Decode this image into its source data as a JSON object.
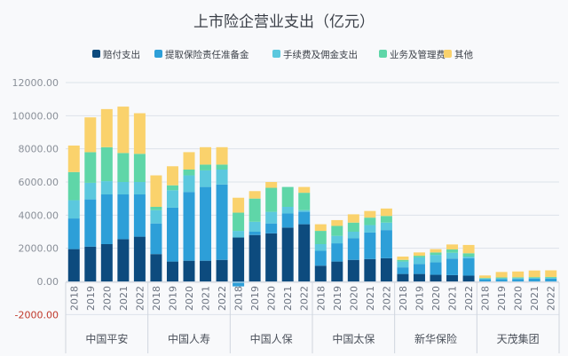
{
  "chart_data": {
    "type": "bar",
    "stacked": true,
    "title": "上市险企营业支出（亿元）",
    "xlabel": "",
    "ylabel": "",
    "ylim": [
      -2000,
      12000
    ],
    "yticks": [
      "-2000.00",
      "0.00",
      "2000.00",
      "4000.00",
      "6000.00",
      "8000.00",
      "10000.00",
      "12000.00"
    ],
    "ytick_values": [
      -2000,
      0,
      2000,
      4000,
      6000,
      8000,
      10000,
      12000
    ],
    "grid": true,
    "legend_position": "top",
    "groups": [
      "中国平安",
      "中国人寿",
      "中国人保",
      "中国太保",
      "新华保险",
      "天茂集团"
    ],
    "years": [
      "2018",
      "2019",
      "2020",
      "2021",
      "2022"
    ],
    "series": [
      {
        "name": "赔付支出",
        "color": "#0d4b7e",
        "values": [
          1950,
          2100,
          2250,
          2550,
          2700,
          1650,
          1200,
          1250,
          1250,
          1300,
          2650,
          2800,
          2900,
          3250,
          3450,
          950,
          1200,
          1300,
          1350,
          1400,
          450,
          450,
          400,
          380,
          350,
          0,
          0,
          0,
          0,
          0
        ]
      },
      {
        "name": "提取保险责任准备金",
        "color": "#2d9fd8",
        "values": [
          1850,
          2850,
          3000,
          2700,
          2550,
          1850,
          3250,
          4150,
          4450,
          4550,
          -300,
          200,
          600,
          850,
          750,
          900,
          1100,
          1300,
          1600,
          1700,
          400,
          600,
          750,
          1000,
          1050,
          130,
          140,
          150,
          160,
          170
        ]
      },
      {
        "name": "手续费及佣金支出",
        "color": "#5bc8de",
        "values": [
          1100,
          1000,
          800,
          750,
          750,
          800,
          1050,
          1000,
          1000,
          900,
          400,
          600,
          700,
          400,
          100,
          400,
          450,
          400,
          450,
          450,
          350,
          400,
          450,
          350,
          100,
          40,
          50,
          50,
          50,
          50
        ]
      },
      {
        "name": "业务及管理费",
        "color": "#5fd6a8",
        "values": [
          1700,
          1850,
          2050,
          1750,
          1700,
          200,
          300,
          350,
          350,
          300,
          1100,
          1400,
          1450,
          1200,
          1050,
          800,
          600,
          550,
          450,
          400,
          100,
          100,
          150,
          200,
          200,
          40,
          50,
          50,
          50,
          50
        ]
      },
      {
        "name": "其他",
        "color": "#fad26c",
        "values": [
          1600,
          2100,
          2300,
          2800,
          2450,
          1900,
          1150,
          1050,
          1050,
          1050,
          900,
          450,
          350,
          0,
          350,
          400,
          350,
          500,
          400,
          450,
          200,
          200,
          200,
          300,
          500,
          150,
          330,
          350,
          400,
          400
        ]
      }
    ]
  }
}
